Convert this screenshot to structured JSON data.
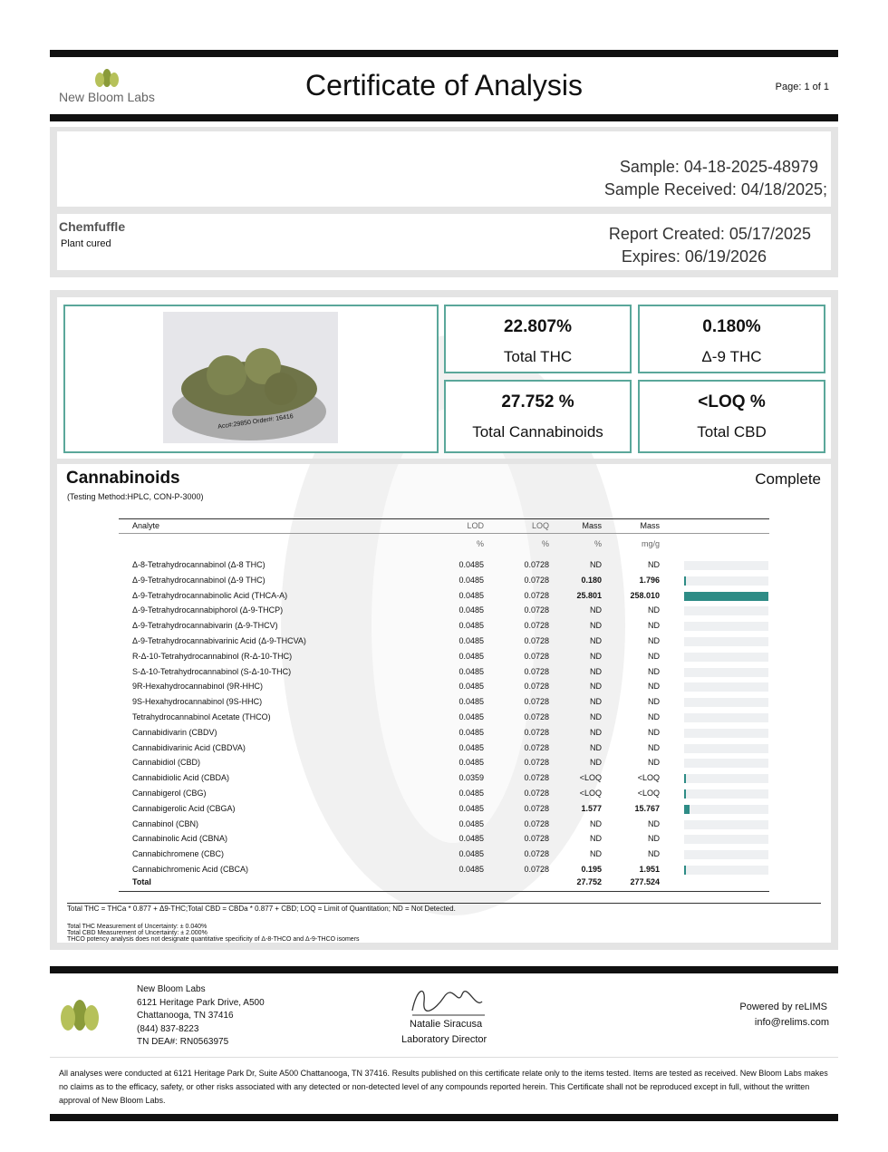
{
  "header": {
    "logo_name": "New Bloom Labs",
    "title": "Certificate of Analysis",
    "page": "Page: 1 of 1"
  },
  "sample": {
    "id": "Sample: 04-18-2025-48979",
    "received": "Sample Received: 04/18/2025;",
    "product_name": "Chemfuffle",
    "product_type": "Plant cured",
    "report_created": "Report Created: 05/17/2025",
    "expires": "Expires: 06/19/2026",
    "photo_caption": "Acc#:29850 Order#: 16416"
  },
  "summary": [
    {
      "value": "22.807%",
      "label": "Total THC"
    },
    {
      "value": "0.180%",
      "label": "Δ-9 THC"
    },
    {
      "value": "27.752 %",
      "label": "Total Cannabinoids"
    },
    {
      "value": "<LOQ %",
      "label": "Total CBD"
    }
  ],
  "section": {
    "title": "Cannabinoids",
    "method": "(Testing Method:HPLC, CON-P-3000)",
    "status": "Complete"
  },
  "table": {
    "columns": [
      {
        "name": "Analyte"
      },
      {
        "name": "LOD",
        "unit": "%"
      },
      {
        "name": "LOQ",
        "unit": "%"
      },
      {
        "name": "Mass",
        "unit": "%"
      },
      {
        "name": "Mass",
        "unit": "mg/g"
      }
    ],
    "rows": [
      [
        "Δ-8-Tetrahydrocannabinol (Δ-8 THC)",
        "0.0485",
        "0.0728",
        "ND",
        "ND"
      ],
      [
        "Δ-9-Tetrahydrocannabinol (Δ-9 THC)",
        "0.0485",
        "0.0728",
        "0.180",
        "1.796"
      ],
      [
        "Δ-9-Tetrahydrocannabinolic Acid (THCA-A)",
        "0.0485",
        "0.0728",
        "25.801",
        "258.010"
      ],
      [
        "Δ-9-Tetrahydrocannabiphorol (Δ-9-THCP)",
        "0.0485",
        "0.0728",
        "ND",
        "ND"
      ],
      [
        "Δ-9-Tetrahydrocannabivarin (Δ-9-THCV)",
        "0.0485",
        "0.0728",
        "ND",
        "ND"
      ],
      [
        "Δ-9-Tetrahydrocannabivarinic Acid (Δ-9-THCVA)",
        "0.0485",
        "0.0728",
        "ND",
        "ND"
      ],
      [
        "R-Δ-10-Tetrahydrocannabinol (R-Δ-10-THC)",
        "0.0485",
        "0.0728",
        "ND",
        "ND"
      ],
      [
        "S-Δ-10-Tetrahydrocannabinol (S-Δ-10-THC)",
        "0.0485",
        "0.0728",
        "ND",
        "ND"
      ],
      [
        "9R-Hexahydrocannabinol (9R-HHC)",
        "0.0485",
        "0.0728",
        "ND",
        "ND"
      ],
      [
        "9S-Hexahydrocannabinol (9S-HHC)",
        "0.0485",
        "0.0728",
        "ND",
        "ND"
      ],
      [
        "Tetrahydrocannabinol Acetate (THCO)",
        "0.0485",
        "0.0728",
        "ND",
        "ND"
      ],
      [
        "Cannabidivarin (CBDV)",
        "0.0485",
        "0.0728",
        "ND",
        "ND"
      ],
      [
        "Cannabidivarinic Acid (CBDVA)",
        "0.0485",
        "0.0728",
        "ND",
        "ND"
      ],
      [
        "Cannabidiol (CBD)",
        "0.0485",
        "0.0728",
        "ND",
        "ND"
      ],
      [
        "Cannabidiolic Acid (CBDA)",
        "0.0359",
        "0.0728",
        "<LOQ",
        "<LOQ"
      ],
      [
        "Cannabigerol (CBG)",
        "0.0485",
        "0.0728",
        "<LOQ",
        "<LOQ"
      ],
      [
        "Cannabigerolic Acid (CBGA)",
        "0.0485",
        "0.0728",
        "1.577",
        "15.767"
      ],
      [
        "Cannabinol (CBN)",
        "0.0485",
        "0.0728",
        "ND",
        "ND"
      ],
      [
        "Cannabinolic Acid (CBNA)",
        "0.0485",
        "0.0728",
        "ND",
        "ND"
      ],
      [
        "Cannabichromene (CBC)",
        "0.0485",
        "0.0728",
        "ND",
        "ND"
      ],
      [
        "Cannabichromenic Acid (CBCA)",
        "0.0485",
        "0.0728",
        "0.195",
        "1.951"
      ]
    ],
    "total": {
      "label": "Total",
      "percent": "27.752",
      "mass": "277.524"
    }
  },
  "notes": [
    "Total THC = THCa * 0.877 + Δ9-THC;Total CBD = CBDa * 0.877 + CBD; LOQ = Limit of Quantitation; ND = Not Detected.",
    "Total THC Measurement of Uncertainty: ± 0.040%",
    "Total CBD Measurement of Uncertainty: ± 2.000%",
    "THCO potency analysis does not designate quantitative specificity of Δ-8-THCO and Δ-9-THCO isomers"
  ],
  "footer": {
    "lab": [
      "New Bloom Labs",
      "6121 Heritage Park Drive, A500",
      "Chattanooga, TN 37416",
      "(844) 837-8223",
      "TN DEA#: RN0563975"
    ],
    "signer": "Natalie Siracusa",
    "signer_title": "Laboratory Director",
    "powered": "Powered by reLIMS",
    "email": "info@relims.com",
    "disclaimer": "All analyses were conducted at 6121 Heritage Park Dr, Suite A500 Chattanooga, TN 37416. Results published on this certificate relate only to the items tested. Items are tested as received. New Bloom Labs makes no claims as to the efficacy, safety, or other risks associated with any detected or non-detected level of any compounds reported herein. This Certificate shall not be reproduced except in full, without the written approval of New Bloom Labs."
  }
}
